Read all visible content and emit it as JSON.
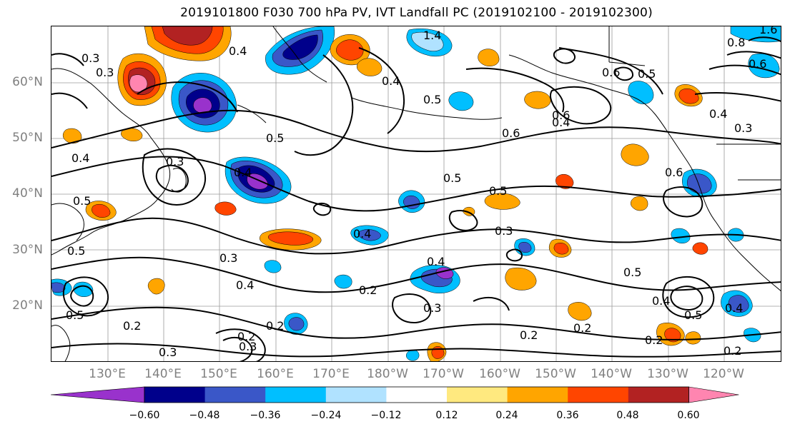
{
  "title": "2019101800 F030 700 hPa PV, IVT Landfall PC (2019102100 - 2019102300)",
  "lat_labels": [
    "60°N",
    "50°N",
    "40°N",
    "30°N",
    "20°N"
  ],
  "lon_labels": [
    "130°E",
    "140°E",
    "150°E",
    "160°E",
    "170°E",
    "180°W",
    "170°W",
    "160°W",
    "150°W",
    "140°W",
    "130°W",
    "120°W"
  ],
  "contour_labels": [
    "0.3",
    "0.3",
    "0.4",
    "0.4",
    "0.4",
    "0.5",
    "0.5",
    "0.6",
    "0.6",
    "0.5",
    "0.4",
    "0.6",
    "1.4",
    "0.8",
    "0.6",
    "0.4",
    "0.3",
    "0.5",
    "0.6",
    "0.5",
    "0.4",
    "0.3",
    "0.3",
    "0.4",
    "0.5",
    "0.2",
    "0.3",
    "0.4",
    "0.5",
    "0.2",
    "0.2",
    "0.3",
    "0.3",
    "0.2",
    "0.2",
    "0.4",
    "0.5",
    "0.2",
    "0.5",
    "0.4",
    "0.2",
    "0.5",
    "0.4",
    "0.3",
    "0.2",
    "1.6"
  ],
  "colorbar": {
    "ticks": [
      "−0.60",
      "−0.48",
      "−0.36",
      "−0.24",
      "−0.12",
      "0.12",
      "0.24",
      "0.36",
      "0.48",
      "0.60"
    ],
    "colors": [
      "#9932cc",
      "#00008b",
      "#3a57c8",
      "#00bfff",
      "#b0e2ff",
      "#ffffff",
      "#ffe97f",
      "#ffa500",
      "#ff4500",
      "#b22222",
      "#ff85b0"
    ]
  }
}
